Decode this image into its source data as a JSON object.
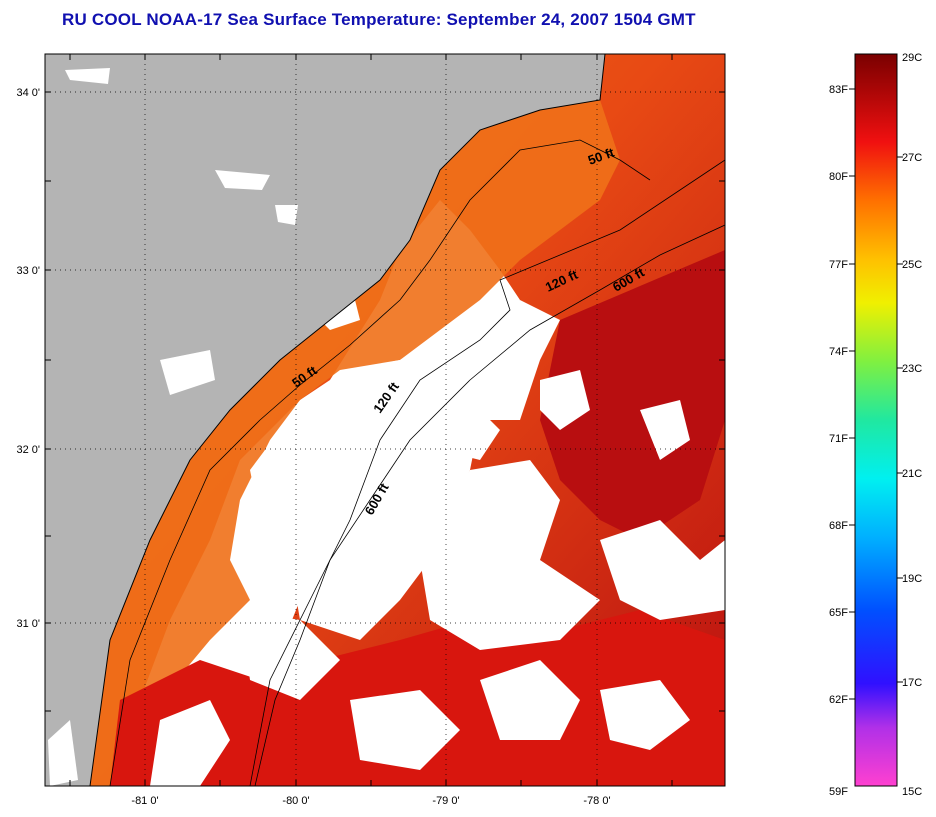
{
  "title": "RU COOL  NOAA-17  Sea Surface Temperature:  September 24, 2007 1504 GMT",
  "lon_ticks": [
    "-81 0'",
    "-80 0'",
    "-79 0'",
    "-78 0'"
  ],
  "lat_ticks": [
    "34 0'",
    "33 0'",
    "32 0'",
    "31 0'"
  ],
  "depth_labels": [
    "50 ft",
    "120 ft",
    "600 ft",
    "50 ft",
    "120 ft",
    "600 ft"
  ],
  "colorbar": {
    "fahrenheit": [
      "83F",
      "80F",
      "77F",
      "74F",
      "71F",
      "68F",
      "65F",
      "62F",
      "59F"
    ],
    "celsius": [
      "29C",
      "27C",
      "25C",
      "23C",
      "21C",
      "19C",
      "17C",
      "15C"
    ]
  },
  "colors": {
    "land": "#b4b4b4",
    "cloud": "#ffffff",
    "title": "#1010b0",
    "sst_shelf": "#f07018",
    "sst_mid": "#e03010",
    "sst_offshore": "#b00c10"
  }
}
